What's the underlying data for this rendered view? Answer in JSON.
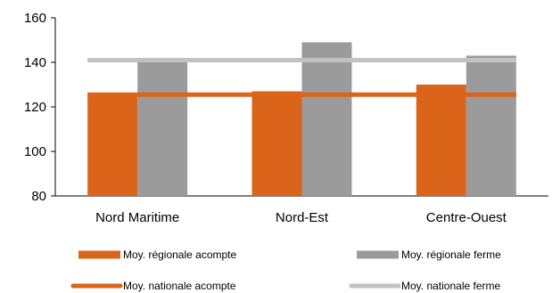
{
  "chart_data": {
    "type": "bar",
    "categories": [
      "Nord Maritime",
      "Nord-Est",
      "Centre-Ouest"
    ],
    "series": [
      {
        "name": "Moy. régionale acompte",
        "kind": "bar",
        "color": "#D9641A",
        "values": [
          125,
          127,
          130
        ]
      },
      {
        "name": "Moy. régionale ferme",
        "kind": "bar",
        "color": "#9B9B9B",
        "values": [
          140,
          149,
          143
        ]
      },
      {
        "name": "Moy. nationale acompte",
        "kind": "line",
        "color": "#D9641A",
        "values": [
          125.5,
          125.5,
          125.5
        ]
      },
      {
        "name": "Moy. nationale ferme",
        "kind": "line",
        "color": "#C2C2C2",
        "values": [
          141,
          141,
          141
        ]
      }
    ],
    "ylim": [
      80,
      160
    ],
    "yticks": [
      80,
      100,
      120,
      140,
      160
    ],
    "title": "",
    "xlabel": "",
    "ylabel": "",
    "grid": false,
    "legend_position": "bottom"
  }
}
